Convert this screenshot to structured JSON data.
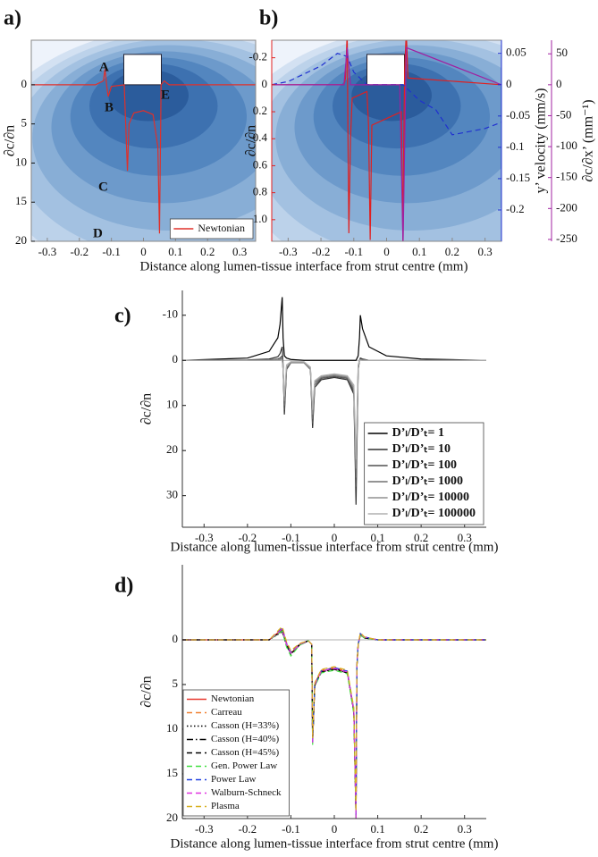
{
  "chart_data": [
    {
      "type": "line",
      "panel_label": "a)",
      "ylabel": "∂c/∂n",
      "xlabel": "Distance along lumen-tissue interface from strut centre (mm)",
      "x": [
        -0.35,
        -0.15,
        -0.125,
        -0.12,
        -0.115,
        -0.11,
        -0.1,
        -0.06,
        -0.05,
        -0.045,
        -0.03,
        0,
        0.03,
        0.045,
        0.05,
        0.055,
        0.065,
        0.08,
        0.15,
        0.35
      ],
      "series": [
        {
          "name": "Newtonian",
          "color": "#e0302a",
          "dash": "solid",
          "values": [
            0,
            0,
            -0.5,
            -2,
            0,
            1.5,
            0.2,
            0,
            11,
            5,
            3.6,
            3.3,
            3.8,
            8,
            19,
            0,
            -0.5,
            0,
            0,
            0
          ]
        }
      ],
      "annotations": [
        "A",
        "B",
        "C",
        "D",
        "E"
      ],
      "xlim": [
        -0.35,
        0.35
      ],
      "xticks": [
        -0.3,
        -0.2,
        -0.1,
        0,
        0.1,
        0.2,
        0.3
      ],
      "ylim": [
        20,
        -5.7
      ],
      "yticks": [
        0,
        5,
        10,
        15,
        20
      ],
      "legend": "lower right",
      "box": true,
      "contours": true
    },
    {
      "type": "line",
      "panel_label": "b)",
      "ylabel": "∂c/∂n",
      "y2label": "y’ velocity (mm/s)",
      "y3label": "∂c/∂x’ (mm⁻¹)",
      "ycolor": "#e02020",
      "y2color": "#2030d0",
      "y3color": "#a020a0",
      "series": [
        {
          "color": "#e02020",
          "dash": "solid",
          "axis": "y",
          "x": [
            -0.35,
            -0.13,
            -0.125,
            -0.12,
            -0.118,
            -0.115,
            -0.11,
            -0.105,
            -0.06,
            -0.055,
            -0.05,
            -0.045,
            0.045,
            0.05,
            0.052,
            0.055,
            0.06,
            0.065,
            0.35
          ],
          "values": [
            0,
            0,
            -0.05,
            -0.4,
            0.3,
            1.1,
            0.4,
            0.1,
            0.05,
            0.3,
            1.15,
            0.3,
            0.2,
            1.2,
            0.5,
            -0.1,
            -0.4,
            -0.05,
            0
          ]
        },
        {
          "color": "#2030d0",
          "dash": "dashed",
          "axis": "y2",
          "x": [
            -0.35,
            -0.3,
            -0.2,
            -0.15,
            -0.12,
            -0.1,
            -0.06,
            0.05,
            0.07,
            0.1,
            0.15,
            0.2,
            0.3,
            0.35
          ],
          "values": [
            0,
            0.005,
            0.03,
            0.05,
            0.045,
            0.02,
            0,
            0,
            -0.01,
            -0.025,
            -0.04,
            -0.08,
            -0.07,
            -0.06
          ]
        },
        {
          "color": "#a020a0",
          "dash": "solid",
          "axis": "y3",
          "x": [
            -0.35,
            -0.13,
            -0.12,
            -0.11,
            -0.05,
            0.04,
            0.05,
            0.06,
            0.35
          ],
          "values": [
            0,
            0,
            60,
            0,
            0,
            0,
            -260,
            60,
            0
          ]
        }
      ],
      "xlim": [
        -0.35,
        0.35
      ],
      "xticks": [
        -0.3,
        -0.2,
        -0.1,
        0,
        0.1,
        0.2,
        0.3
      ],
      "ylim": [
        1.16,
        -0.33
      ],
      "yticks": [
        -0.2,
        0,
        0.2,
        0.4,
        0.6,
        0.8,
        {
          "value": 1,
          "label": "1.0"
        }
      ],
      "y2lim": [
        -0.25,
        0.071
      ],
      "y2ticks": [
        0.05,
        0,
        -0.05,
        -0.1,
        -0.15,
        -0.2
      ],
      "y3lim": [
        -253,
        72
      ],
      "y3ticks": [
        50,
        0,
        -50,
        -100,
        -150,
        -200,
        -250
      ],
      "box": true,
      "contours": true
    },
    {
      "type": "line",
      "panel_label": "c)",
      "ylabel": "∂c/∂n",
      "xlabel": "Distance along lumen-tissue interface from strut centre (mm)",
      "x": [
        -0.35,
        -0.2,
        -0.15,
        -0.13,
        -0.125,
        -0.12,
        -0.118,
        -0.115,
        -0.11,
        -0.1,
        -0.07,
        -0.055,
        -0.05,
        -0.045,
        -0.03,
        0,
        0.03,
        0.045,
        0.05,
        0.055,
        0.058,
        0.06,
        0.065,
        0.08,
        0.12,
        0.2,
        0.35
      ],
      "series": [
        {
          "name": "D’ₗ/D’ₜ= 1",
          "color": "#000000",
          "dash": "solid",
          "values": [
            0,
            -0.5,
            -2,
            -5,
            -8,
            -14,
            -5,
            -1,
            -0.5,
            -0.2,
            0,
            0,
            0,
            0,
            0,
            0,
            0,
            0,
            0,
            -1,
            -5,
            -10,
            -7,
            -3,
            -1,
            -0.3,
            0
          ]
        },
        {
          "name": "D’ₗ/D’ₜ= 10",
          "color": "#303030",
          "dash": "solid",
          "values": [
            0,
            -0.1,
            -0.3,
            -0.8,
            -1.5,
            -3,
            1,
            12,
            2,
            0.5,
            0.5,
            2,
            15,
            6,
            4.3,
            3.8,
            4.3,
            7.5,
            32,
            2,
            0,
            -0.5,
            -0.3,
            0,
            0,
            0,
            0
          ]
        },
        {
          "name": "D’ₗ/D’ₜ= 100",
          "color": "#505050",
          "dash": "solid",
          "values": [
            0,
            0,
            -0.1,
            -0.3,
            -0.5,
            -1,
            2,
            11,
            2,
            0.5,
            0.5,
            2,
            14,
            5.5,
            4,
            3.6,
            4,
            7,
            28,
            2,
            0,
            -0.3,
            -0.2,
            0,
            0,
            0,
            0
          ]
        },
        {
          "name": "D’ₗ/D’ₜ= 1000",
          "color": "#707070",
          "dash": "solid",
          "values": [
            0,
            0,
            0,
            -0.1,
            -0.2,
            -0.5,
            2,
            10,
            1.5,
            0.5,
            0.5,
            2,
            13,
            5,
            3.8,
            3.4,
            3.8,
            6.5,
            26,
            1.5,
            0,
            -0.2,
            0,
            0,
            0,
            0,
            0
          ]
        },
        {
          "name": "D’ₗ/D’ₜ= 10000",
          "color": "#909090",
          "dash": "solid",
          "values": [
            0,
            0,
            0,
            0,
            0,
            -0.2,
            2,
            9,
            1.5,
            0.4,
            0.4,
            1.8,
            12,
            4.8,
            3.6,
            3.2,
            3.6,
            6,
            24,
            1.5,
            0,
            -0.1,
            0,
            0,
            0,
            0,
            0
          ]
        },
        {
          "name": "D’ₗ/D’ₜ= 100000",
          "color": "#b0b0b0",
          "dash": "solid",
          "values": [
            0,
            0,
            0,
            0,
            0,
            0,
            2,
            8,
            1,
            0.3,
            0.3,
            1.5,
            11,
            4.5,
            3.4,
            3,
            3.4,
            5.5,
            22,
            1,
            0,
            0,
            0,
            0,
            0,
            0,
            0
          ]
        }
      ],
      "xlim": [
        -0.35,
        0.35
      ],
      "xticks": [
        -0.3,
        -0.2,
        -0.1,
        0,
        0.1,
        0.2,
        0.3
      ],
      "ylim": [
        37,
        -15.5
      ],
      "yticks": [
        -10,
        0,
        10,
        20,
        30
      ],
      "legend": "lower right",
      "zero_line": true
    },
    {
      "type": "line",
      "panel_label": "d)",
      "ylabel": "∂c/∂n",
      "xlabel": "Distance along lumen-tissue interface from strut centre (mm)",
      "x": [
        -0.35,
        -0.15,
        -0.12,
        -0.11,
        -0.1,
        -0.08,
        -0.06,
        -0.052,
        -0.05,
        -0.045,
        -0.03,
        0,
        0.03,
        0.045,
        0.05,
        0.052,
        0.055,
        0.06,
        0.07,
        0.1,
        0.35
      ],
      "series": [
        {
          "name": "Newtonian",
          "color": "#e8382f",
          "dash": "solid",
          "values": [
            0,
            0,
            -1.2,
            0.5,
            1.5,
            0.5,
            0.1,
            0.5,
            11.5,
            5,
            3.5,
            3.2,
            3.6,
            8,
            20,
            3,
            0.5,
            -0.6,
            -0.3,
            0,
            0
          ]
        },
        {
          "name": "Carreau",
          "color": "#f08030",
          "dash": "dashed",
          "values": [
            0,
            0,
            -1.4,
            0.3,
            1.3,
            0.4,
            0.1,
            0.5,
            11.2,
            4.9,
            3.4,
            3.1,
            3.5,
            7.8,
            19.5,
            3,
            0.5,
            -0.7,
            -0.3,
            0,
            0
          ]
        },
        {
          "name": "Casson (H=33%)",
          "color": "#000000",
          "dash": "dotted",
          "values": [
            0,
            0,
            -0.9,
            0.6,
            1.6,
            0.6,
            0.1,
            0.5,
            11.6,
            5.1,
            3.6,
            3.3,
            3.7,
            8.1,
            20,
            3,
            0.5,
            -0.5,
            -0.2,
            0,
            0
          ]
        },
        {
          "name": "Casson (H=40%)",
          "color": "#000000",
          "dash": "dashdot",
          "values": [
            0,
            0,
            -1,
            0.6,
            1.6,
            0.6,
            0.1,
            0.5,
            11.6,
            5.1,
            3.6,
            3.3,
            3.7,
            8.1,
            20,
            3,
            0.5,
            -0.5,
            -0.2,
            0,
            0
          ]
        },
        {
          "name": "Casson (H=45%)",
          "color": "#000000",
          "dash": "dashed",
          "values": [
            0,
            0,
            -1.1,
            0.5,
            1.5,
            0.5,
            0.1,
            0.5,
            11.5,
            5,
            3.5,
            3.2,
            3.6,
            8,
            20,
            3,
            0.5,
            -0.6,
            -0.3,
            0,
            0
          ]
        },
        {
          "name": "Gen. Power Law",
          "color": "#40e040",
          "dash": "dashed",
          "values": [
            0,
            0,
            -1,
            0.8,
            1.8,
            0.6,
            0.1,
            0.5,
            11.8,
            5.2,
            3.7,
            3.4,
            3.8,
            8.3,
            20,
            3,
            0.5,
            -0.5,
            -0.2,
            0,
            0
          ]
        },
        {
          "name": "Power Law",
          "color": "#2040e0",
          "dash": "dashed",
          "values": [
            0,
            0,
            -1.3,
            0.4,
            1.4,
            0.5,
            0.1,
            0.5,
            11.4,
            5,
            3.5,
            3.1,
            3.5,
            7.9,
            19.8,
            3,
            0.5,
            -0.7,
            -0.3,
            0,
            0
          ]
        },
        {
          "name": "Walburn-Schneck",
          "color": "#e030e0",
          "dash": "dashed",
          "values": [
            0,
            0,
            -1.2,
            0.5,
            1.5,
            0.5,
            0.1,
            0.5,
            11.5,
            5,
            3.5,
            3.2,
            3.6,
            8,
            20,
            3,
            0.5,
            -0.6,
            -0.3,
            0,
            0
          ]
        },
        {
          "name": "Plasma",
          "color": "#d8b020",
          "dash": "dashed",
          "values": [
            0,
            0,
            -1.5,
            0.2,
            1.2,
            0.4,
            0.1,
            0.5,
            11,
            4.8,
            3.3,
            3,
            3.4,
            7.6,
            19.2,
            3,
            0.5,
            -0.8,
            -0.3,
            0,
            0
          ]
        }
      ],
      "xlim": [
        -0.35,
        0.35
      ],
      "xticks": [
        -0.3,
        -0.2,
        -0.1,
        0,
        0.1,
        0.2,
        0.3
      ],
      "ylim": [
        20,
        -8.4
      ],
      "yticks": [
        0,
        5,
        10,
        15,
        20
      ],
      "legend": "lower left",
      "zero_line": true
    }
  ]
}
